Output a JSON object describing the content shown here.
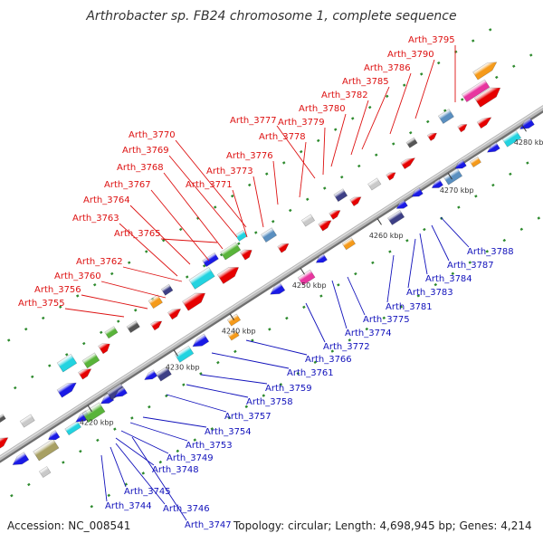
{
  "title": "Arthrobacter sp. FB24 chromosome 1, complete sequence",
  "footer": {
    "accession": "Accession: NC_008541",
    "summary": "Topology: circular; Length: 4,698,945 bp; Genes: 4,214"
  },
  "colors": {
    "top_label": "#dd1111",
    "bottom_label": "#1111bb",
    "backbone": "#999999"
  },
  "scale_ticks": [
    "4220 kbp",
    "4230 kbp",
    "4240 kbp",
    "4250 kbp",
    "4260 kbp",
    "4270 kbp",
    "4280 kbp"
  ],
  "genes_top": [
    "Arth_3755",
    "Arth_3756",
    "Arth_3760",
    "Arth_3762",
    "Arth_3765",
    "Arth_3763",
    "Arth_3764",
    "Arth_3767",
    "Arth_3768",
    "Arth_3769",
    "Arth_3770",
    "Arth_3771",
    "Arth_3773",
    "Arth_3776",
    "Arth_3778",
    "Arth_3777",
    "Arth_3779",
    "Arth_3780",
    "Arth_3782",
    "Arth_3785",
    "Arth_3786",
    "Arth_3790",
    "Arth_3795"
  ],
  "genes_bottom": [
    "Arth_3744",
    "Arth_3745",
    "Arth_3746",
    "Arth_3747",
    "Arth_3748",
    "Arth_3749",
    "Arth_3753",
    "Arth_3754",
    "Arth_3757",
    "Arth_3758",
    "Arth_3759",
    "Arth_3761",
    "Arth_3766",
    "Arth_3772",
    "Arth_3774",
    "Arth_3775",
    "Arth_3781",
    "Arth_3783",
    "Arth_3784",
    "Arth_3787",
    "Arth_3788"
  ]
}
